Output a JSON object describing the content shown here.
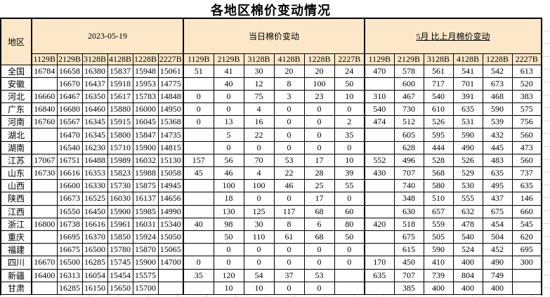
{
  "title": "各地区棉价变动情况",
  "colors": {
    "header_bg": "#FCE7C8",
    "change_text": "#FF0000",
    "price_text": "#000000",
    "border": "#000000"
  },
  "table": {
    "region_header": "地区",
    "groups": [
      {
        "label": "2023-05-19"
      },
      {
        "label": "当日棉价变动"
      },
      {
        "label": "5月 比上月棉价变动"
      }
    ],
    "grade_columns": [
      "1129B",
      "2129B",
      "3128B",
      "4128B",
      "1228B",
      "2227B"
    ],
    "rows": [
      {
        "region": "全国",
        "prices": [
          "16784",
          "16658",
          "16380",
          "15837",
          "15948",
          "15061"
        ],
        "daily_change": [
          "51",
          "41",
          "30",
          "20",
          "20",
          "24"
        ],
        "monthly_change": [
          "470",
          "578",
          "561",
          "541",
          "542",
          "613"
        ]
      },
      {
        "region": "安徽",
        "prices": [
          "",
          "16670",
          "16437",
          "15918",
          "15953",
          "14775"
        ],
        "daily_change": [
          "",
          "40",
          "12",
          "8",
          "100",
          "50"
        ],
        "monthly_change": [
          "",
          "600",
          "717",
          "701",
          "673",
          "520"
        ]
      },
      {
        "region": "河北",
        "prices": [
          "16660",
          "16467",
          "16350",
          "15617",
          "15783",
          "14848"
        ],
        "daily_change": [
          "0",
          "0",
          "75",
          "3",
          "23",
          "10"
        ],
        "monthly_change": [
          "310",
          "467",
          "540",
          "391",
          "468",
          "383"
        ]
      },
      {
        "region": "广东",
        "prices": [
          "16840",
          "16680",
          "16460",
          "15880",
          "16000",
          "14950"
        ],
        "daily_change": [
          "0",
          "0",
          "4",
          "0",
          "0",
          "0"
        ],
        "monthly_change": [
          "540",
          "730",
          "610",
          "635",
          "590",
          "575"
        ]
      },
      {
        "region": "河南",
        "prices": [
          "16760",
          "16567",
          "16345",
          "15915",
          "16045",
          "15368"
        ],
        "daily_change": [
          "0",
          "13",
          "16",
          "0",
          "0",
          "2"
        ],
        "monthly_change": [
          "474",
          "512",
          "526",
          "531",
          "539",
          "756"
        ]
      },
      {
        "region": "湖北",
        "prices": [
          "",
          "16470",
          "16345",
          "15800",
          "15847",
          "14735"
        ],
        "daily_change": [
          "",
          "5",
          "22",
          "0",
          "0",
          "35"
        ],
        "monthly_change": [
          "",
          "605",
          "595",
          "590",
          "432",
          "560"
        ]
      },
      {
        "region": "湖南",
        "prices": [
          "",
          "16540",
          "16230",
          "15710",
          "15900",
          "14815"
        ],
        "daily_change": [
          "",
          "0",
          "0",
          "0",
          "0",
          "0"
        ],
        "monthly_change": [
          "",
          "628",
          "444",
          "490",
          "445",
          "473"
        ]
      },
      {
        "region": "江苏",
        "prices": [
          "17067",
          "16751",
          "16488",
          "15989",
          "16032",
          "15130"
        ],
        "daily_change": [
          "157",
          "56",
          "70",
          "53",
          "17",
          "10"
        ],
        "monthly_change": [
          "552",
          "496",
          "528",
          "526",
          "483",
          "560"
        ]
      },
      {
        "region": "山东",
        "prices": [
          "16730",
          "16616",
          "16353",
          "15823",
          "15988",
          "15058"
        ],
        "daily_change": [
          "45",
          "46",
          "4",
          "22",
          "28",
          "39"
        ],
        "monthly_change": [
          "430",
          "707",
          "568",
          "529",
          "635",
          "737"
        ]
      },
      {
        "region": "山西",
        "prices": [
          "",
          "16600",
          "16330",
          "15730",
          "15875",
          "14945"
        ],
        "daily_change": [
          "",
          "100",
          "100",
          "46",
          "25",
          "55"
        ],
        "monthly_change": [
          "",
          "740",
          "580",
          "530",
          "495",
          "635"
        ]
      },
      {
        "region": "陕西",
        "prices": [
          "",
          "16673",
          "16525",
          "16030",
          "16137",
          "14656"
        ],
        "daily_change": [
          "",
          "18",
          "0",
          "0",
          "17",
          "0"
        ],
        "monthly_change": [
          "",
          "348",
          "510",
          "555",
          "437",
          "146"
        ]
      },
      {
        "region": "江西",
        "prices": [
          "",
          "16550",
          "16450",
          "15900",
          "15985",
          "14990"
        ],
        "daily_change": [
          "",
          "130",
          "125",
          "117",
          "68",
          "60"
        ],
        "monthly_change": [
          "",
          "630",
          "657",
          "632",
          "675",
          "660"
        ]
      },
      {
        "region": "浙江",
        "prices": [
          "16800",
          "16738",
          "16616",
          "15961",
          "16031",
          "15340"
        ],
        "daily_change": [
          "40",
          "98",
          "30",
          "8",
          "6",
          "80"
        ],
        "monthly_change": [
          "420",
          "518",
          "559",
          "478",
          "454",
          "545"
        ]
      },
      {
        "region": "重庆",
        "prices": [
          "",
          "16695",
          "16370",
          "15850",
          "15924",
          "15050"
        ],
        "daily_change": [
          "",
          "50",
          "110",
          "61",
          "68",
          "50"
        ],
        "monthly_change": [
          "",
          "675",
          "505",
          "540",
          "504",
          "620"
        ]
      },
      {
        "region": "福建",
        "prices": [
          "",
          "16675",
          "16500",
          "15780",
          "15870",
          "15065"
        ],
        "daily_change": [
          "",
          "0",
          "0",
          "0",
          "0",
          "0"
        ],
        "monthly_change": [
          "",
          "615",
          "590",
          "524",
          "452",
          "695"
        ]
      },
      {
        "region": "四川",
        "prices": [
          "16670",
          "16500",
          "16285",
          "15745",
          "15900",
          "14700"
        ],
        "daily_change": [
          "0",
          "0",
          "0",
          "0",
          "0",
          "0"
        ],
        "monthly_change": [
          "170",
          "450",
          "410",
          "400",
          "490",
          "300"
        ]
      },
      {
        "region": "新疆",
        "prices": [
          "16400",
          "16313",
          "16054",
          "15454",
          "15575",
          ""
        ],
        "daily_change": [
          "35",
          "120",
          "54",
          "37",
          "53",
          ""
        ],
        "monthly_change": [
          "635",
          "707",
          "739",
          "804",
          "749",
          ""
        ]
      },
      {
        "region": "甘肃",
        "prices": [
          "",
          "16285",
          "16150",
          "15650",
          "15700",
          ""
        ],
        "daily_change": [
          "",
          "10",
          "10",
          "0",
          "0",
          ""
        ],
        "monthly_change": [
          "",
          "385",
          "400",
          "400",
          "400",
          ""
        ]
      }
    ]
  }
}
